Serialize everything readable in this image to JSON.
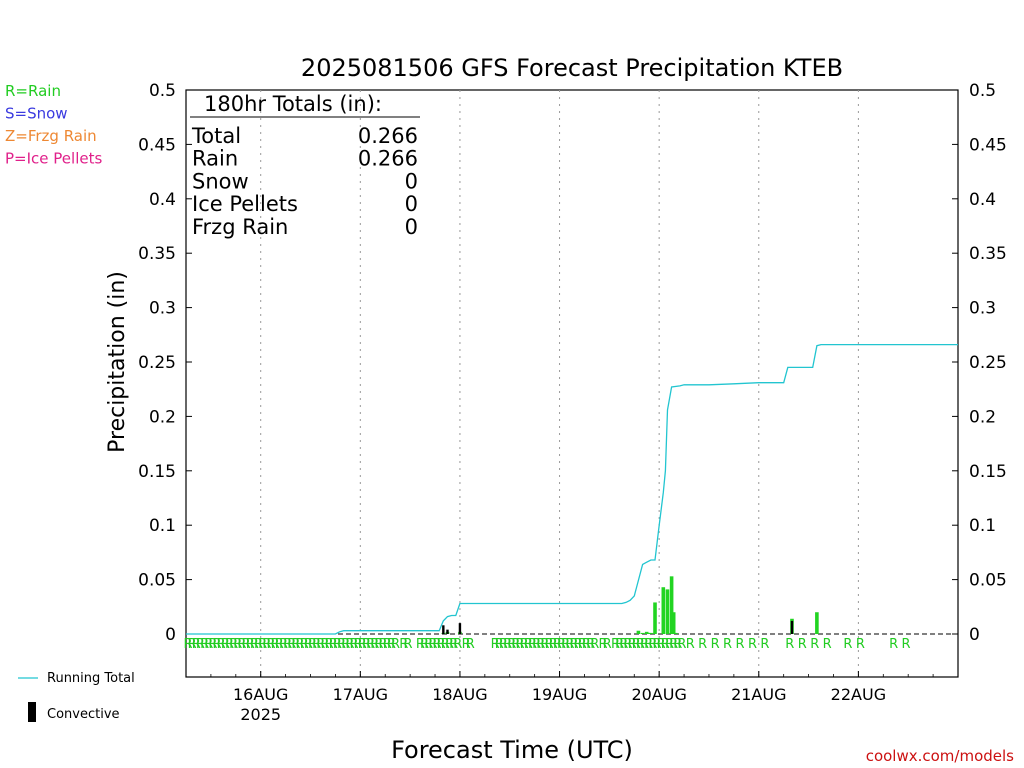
{
  "chart_data": {
    "type": "bar",
    "title": "2025081506 GFS Forecast Precipitation KTEB",
    "xlabel": "Forecast Time (UTC)",
    "ylabel": "Precipitation (in)",
    "ylim": [
      0,
      0.5
    ],
    "yticks": [
      "0",
      "0.05",
      "0.1",
      "0.15",
      "0.2",
      "0.25",
      "0.3",
      "0.35",
      "0.4",
      "0.45",
      "0.5"
    ],
    "x_unit": "forecast hour",
    "xlim": [
      0,
      186
    ],
    "xticks": [
      {
        "hour": 18,
        "label": "16AUG",
        "sublabel": "2025"
      },
      {
        "hour": 42,
        "label": "17AUG",
        "sublabel": ""
      },
      {
        "hour": 66,
        "label": "18AUG",
        "sublabel": ""
      },
      {
        "hour": 90,
        "label": "19AUG",
        "sublabel": ""
      },
      {
        "hour": 114,
        "label": "20AUG",
        "sublabel": ""
      },
      {
        "hour": 138,
        "label": "21AUG",
        "sublabel": ""
      },
      {
        "hour": 162,
        "label": "22AUG",
        "sublabel": ""
      }
    ],
    "grid": "vertical dotted at day ticks",
    "precip_type_legend": [
      {
        "label": "R=Rain",
        "color": "#22cc22"
      },
      {
        "label": "S=Snow",
        "color": "#3a3ae0"
      },
      {
        "label": "Z=Frzg Rain",
        "color": "#ee8833"
      },
      {
        "label": "P=Ice Pellets",
        "color": "#e0208a"
      }
    ],
    "series_legend": {
      "running_total": "Running Total",
      "convective": "Convective"
    },
    "totals_box": {
      "header": "180hr Totals (in):",
      "rows": [
        {
          "label": "Total",
          "value": "0.266"
        },
        {
          "label": "Rain",
          "value": "0.266"
        },
        {
          "label": "Snow",
          "value": "0"
        },
        {
          "label": "Ice Pellets",
          "value": "0"
        },
        {
          "label": "Frzg Rain",
          "value": "0"
        }
      ]
    },
    "running_total": {
      "name": "Running Total",
      "color": "#22c5d0",
      "x": [
        0,
        36,
        37,
        38,
        61,
        62,
        63,
        64,
        65,
        66,
        105,
        106,
        107,
        108,
        110,
        111,
        112,
        113,
        114,
        115,
        115.5,
        116,
        117,
        119,
        120,
        126,
        132,
        138,
        144,
        145,
        151,
        152,
        153,
        186
      ],
      "y": [
        0,
        0,
        0.002,
        0.003,
        0.003,
        0.012,
        0.016,
        0.017,
        0.017,
        0.028,
        0.028,
        0.029,
        0.031,
        0.035,
        0.064,
        0.066,
        0.068,
        0.068,
        0.1,
        0.13,
        0.15,
        0.206,
        0.227,
        0.228,
        0.229,
        0.229,
        0.23,
        0.231,
        0.231,
        0.245,
        0.245,
        0.265,
        0.266,
        0.266
      ]
    },
    "precip_bars": {
      "name": "Rain",
      "color": "#22d422",
      "x": [
        62,
        63,
        66,
        109,
        110,
        111,
        111.5,
        112,
        113,
        115,
        116,
        117,
        117.5,
        118,
        146,
        152
      ],
      "values": [
        0.001,
        0.002,
        0.002,
        0.003,
        0.001,
        0.002,
        0.001,
        0.001,
        0.029,
        0.043,
        0.041,
        0.053,
        0.02,
        0.001,
        0.014,
        0.02
      ]
    },
    "convective_bars": {
      "name": "Convective",
      "color": "#000000",
      "x": [
        62,
        63,
        66,
        146
      ],
      "values": [
        0.008,
        0.004,
        0.01,
        0.012
      ]
    },
    "ptype_markers": {
      "symbol": "R",
      "color": "#22cc22",
      "hours": [
        0,
        1,
        2,
        3,
        4,
        5,
        6,
        7,
        8,
        9,
        10,
        11,
        12,
        13,
        14,
        15,
        16,
        17,
        18,
        19,
        20,
        21,
        22,
        23,
        24,
        25,
        26,
        27,
        28,
        29,
        30,
        31,
        32,
        33,
        34,
        35,
        36,
        37,
        38,
        39,
        40,
        41,
        42,
        43,
        44,
        45,
        46,
        47,
        48,
        49,
        50,
        52,
        53,
        56,
        57,
        58,
        59,
        60,
        61,
        62,
        63,
        64,
        65,
        67,
        68,
        74,
        75,
        76,
        77,
        78,
        79,
        80,
        81,
        82,
        83,
        84,
        85,
        86,
        87,
        88,
        89,
        90,
        91,
        92,
        93,
        94,
        95,
        96,
        97,
        98,
        100,
        101,
        103,
        104,
        105,
        106,
        107,
        108,
        109,
        110,
        111,
        112,
        113,
        114,
        115,
        116,
        117,
        118,
        119,
        121,
        124,
        127,
        130,
        133,
        136,
        139,
        145,
        148,
        151,
        154,
        159,
        162,
        170,
        173
      ]
    }
  },
  "footer": {
    "credit": "coolwx.com/models"
  }
}
